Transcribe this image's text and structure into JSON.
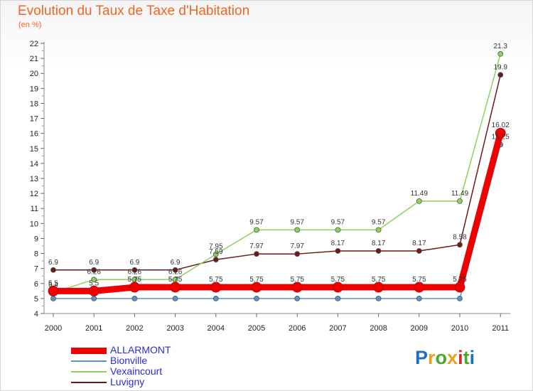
{
  "title": "Evolution du Taux de Taxe d'Habitation",
  "subtitle": "(en %)",
  "logo": {
    "text": "Proxiti",
    "letter_colors": [
      "#1f6fc0",
      "#e8a31a",
      "#4aa82b",
      "#e8a31a",
      "#d42a2a",
      "#4aa82b",
      "#1f6fc0"
    ]
  },
  "chart_data": {
    "type": "line",
    "categories": [
      "2000",
      "2001",
      "2002",
      "2003",
      "2004",
      "2005",
      "2006",
      "2007",
      "2008",
      "2009",
      "2010",
      "2011"
    ],
    "ylim": [
      4,
      22
    ],
    "yticks": [
      "4",
      "5",
      "6",
      "7",
      "8",
      "9",
      "10",
      "11",
      "12",
      "13",
      "14",
      "15",
      "16",
      "17",
      "18",
      "19",
      "20",
      "21",
      "22"
    ],
    "grid": false,
    "legend_position": "bottom-left",
    "series": [
      {
        "name": "Luvigny",
        "color": "#6b1a1a",
        "values": [
          6.9,
          6.9,
          6.9,
          6.9,
          7.59,
          7.97,
          7.97,
          8.17,
          8.17,
          8.17,
          8.58,
          19.9
        ],
        "labels": [
          "6.9",
          "6.9",
          "6.9",
          "6.9",
          "7.59",
          "7.97",
          "7.97",
          "8.17",
          "8.17",
          "8.17",
          "8.58",
          "19.9"
        ]
      },
      {
        "name": "Vexaincourt",
        "color": "#8fd25a",
        "values": [
          5.4,
          6.26,
          6.26,
          6.26,
          7.95,
          9.57,
          9.57,
          9.57,
          9.57,
          11.49,
          11.49,
          21.3
        ],
        "labels": [
          "5.4",
          "6.26",
          "6.26",
          "6.26",
          "7.95",
          "9.57",
          "9.57",
          "9.57",
          "9.57",
          "11.49",
          "11.49",
          "21.3"
        ]
      },
      {
        "name": "Bionville",
        "color": "#5b93c8",
        "values": [
          5,
          5,
          5,
          5,
          5,
          5,
          5,
          5,
          5,
          5,
          5,
          15.25
        ],
        "labels": [
          "",
          "",
          "",
          "",
          "",
          "",
          "",
          "",
          "",
          "",
          "",
          "15.25"
        ]
      },
      {
        "name": "ALLARMONT",
        "color": "#ee0000",
        "values": [
          5.5,
          5.5,
          5.75,
          5.75,
          5.75,
          5.75,
          5.75,
          5.75,
          5.75,
          5.75,
          5.75,
          16.02
        ],
        "labels": [
          "5.5",
          "5.5",
          "5.75",
          "5.75",
          "5.75",
          "5.75",
          "5.75",
          "5.75",
          "5.75",
          "5.75",
          "5.75",
          "16.02"
        ]
      }
    ],
    "legend_order": [
      "ALLARMONT",
      "Bionville",
      "Vexaincourt",
      "Luvigny"
    ],
    "legend_label_colors": {
      "ALLARMONT": "#2a2ad8",
      "Bionville": "#2a2ad8",
      "Vexaincourt": "#2a2ad8",
      "Luvigny": "#2a2ad8"
    }
  }
}
